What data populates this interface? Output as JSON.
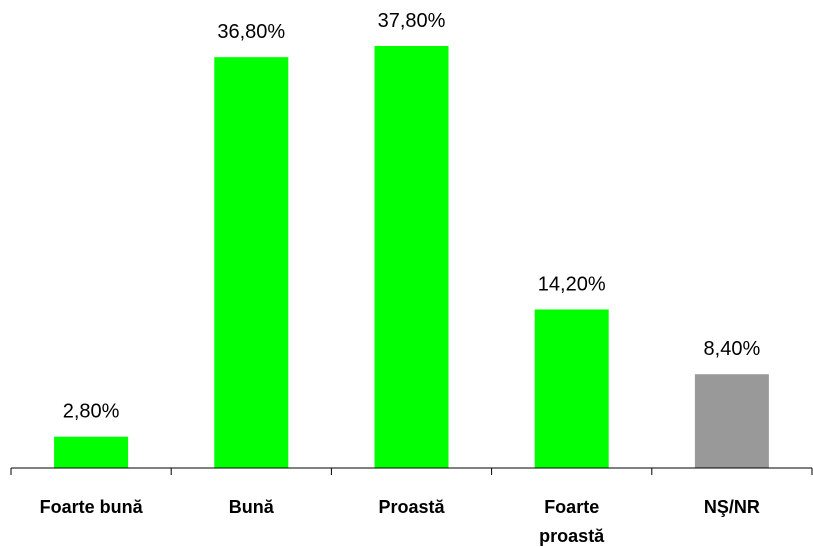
{
  "chart_data": {
    "type": "bar",
    "categories": [
      "Foarte bună",
      "Bună",
      "Proastă",
      "Foarte proastă",
      "NŞ/NR"
    ],
    "category_lines": [
      [
        "Foarte bună"
      ],
      [
        "Bună"
      ],
      [
        "Proastă"
      ],
      [
        "Foarte",
        "proastă"
      ],
      [
        "NŞ/NR"
      ]
    ],
    "values": [
      2.8,
      36.8,
      37.8,
      14.2,
      8.4
    ],
    "value_labels": [
      "2,80%",
      "36,80%",
      "37,80%",
      "14,20%",
      "8,40%"
    ],
    "bar_colors": [
      "#00ff00",
      "#00ff00",
      "#00ff00",
      "#00ff00",
      "#999999"
    ],
    "title": "",
    "xlabel": "",
    "ylabel": "",
    "ylim": [
      0,
      37.8
    ],
    "grid": false,
    "legend": "none"
  }
}
